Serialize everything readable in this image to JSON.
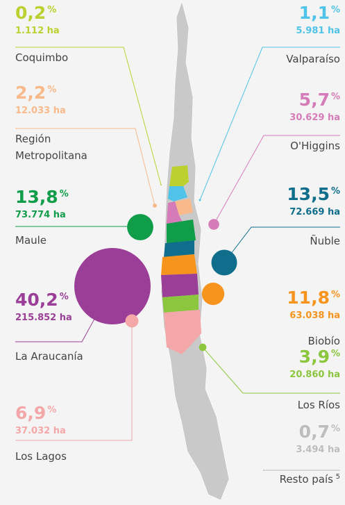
{
  "chart_data": {
    "type": "bubble",
    "categories": [
      "Coquimbo",
      "Valparaíso",
      "Región Metropolitana",
      "O'Higgins",
      "Maule",
      "Ñuble",
      "La Araucanía",
      "Biobío",
      "Los Ríos",
      "Los Lagos",
      "Resto país"
    ],
    "values": [
      0.2,
      1.1,
      2.2,
      5.7,
      13.8,
      13.5,
      40.2,
      11.8,
      3.9,
      6.9,
      0.7
    ],
    "value_labels": [
      "0,2",
      "1,1",
      "2,2",
      "5,7",
      "13,8",
      "13,5",
      "40,2",
      "11,8",
      "3,9",
      "6,9",
      "0,7"
    ],
    "value_unit": "%",
    "hectares": [
      1112,
      5981,
      12033,
      30629,
      73774,
      72669,
      215852,
      63038,
      20860,
      37032,
      3494
    ],
    "hectare_labels": [
      "1.112 ha",
      "5.981 ha",
      "12.033 ha",
      "30.629 ha",
      "73.774 ha",
      "72.669 ha",
      "215.852 ha",
      "63.038 ha",
      "20.860 ha",
      "37.032 ha",
      "3.494 ha"
    ],
    "colors": [
      "#bcd030",
      "#4fc3e8",
      "#f9b98a",
      "#d57cb8",
      "#0f9d4a",
      "#0e6e8c",
      "#9b3e97",
      "#f7941d",
      "#8cc63f",
      "#f4a7a8",
      "#bdbdbd"
    ],
    "footnote_mark": "5"
  }
}
